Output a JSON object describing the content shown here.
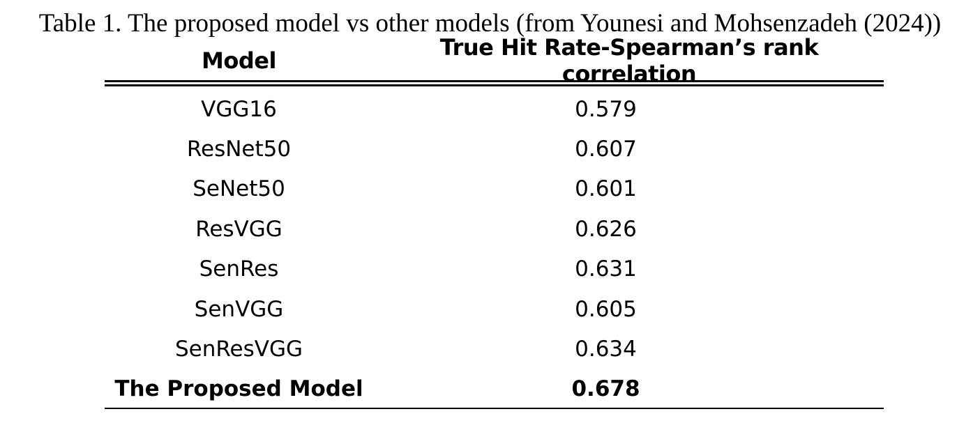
{
  "caption": "Table 1. The proposed model vs other models (from Younesi and Mohsenzadeh (2024))",
  "table": {
    "headers": [
      "Model",
      "True Hit Rate-Spearman’s rank correlation"
    ],
    "rows": [
      {
        "model": "VGG16",
        "value": "0.579"
      },
      {
        "model": "ResNet50",
        "value": "0.607"
      },
      {
        "model": "SeNet50",
        "value": "0.601"
      },
      {
        "model": "ResVGG",
        "value": "0.626"
      },
      {
        "model": "SenRes",
        "value": "0.631"
      },
      {
        "model": "SenVGG",
        "value": "0.605"
      },
      {
        "model": "SenResVGG",
        "value": "0.634"
      },
      {
        "model": "The Proposed Model",
        "value": "0.678"
      }
    ]
  }
}
